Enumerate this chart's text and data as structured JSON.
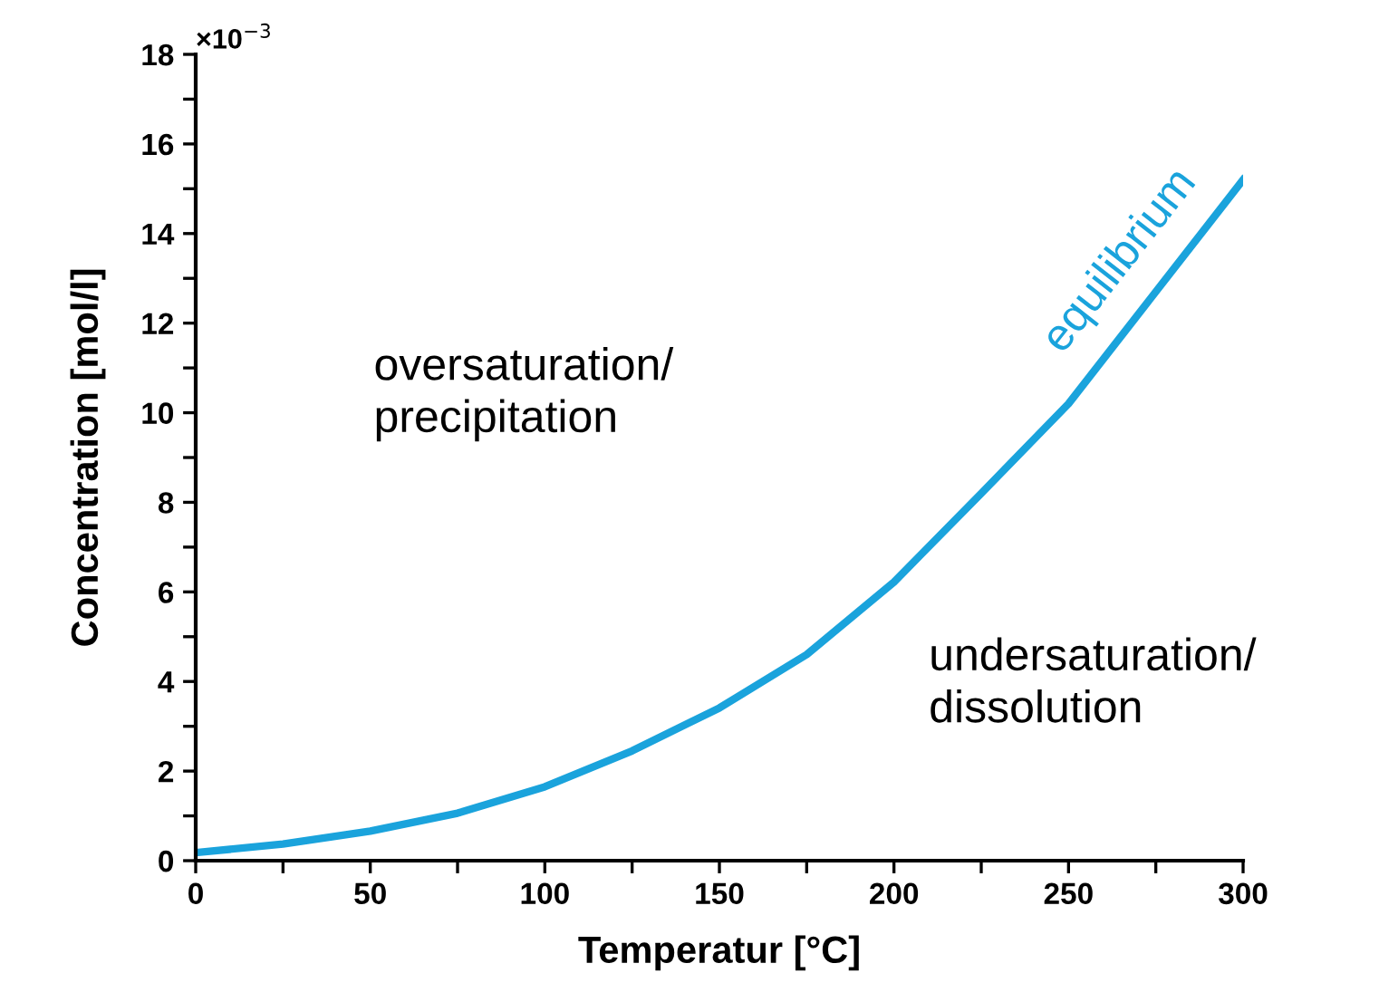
{
  "chart_data": {
    "type": "line",
    "xlabel": "Temperatur [°C]",
    "ylabel": "Concentration [mol/l]",
    "x": [
      0,
      25,
      50,
      75,
      100,
      125,
      150,
      175,
      200,
      225,
      250,
      275,
      300
    ],
    "series": [
      {
        "name": "equilibrium",
        "color": "#1aa3dc",
        "values": [
          0.18,
          0.37,
          0.66,
          1.06,
          1.65,
          2.45,
          3.41,
          4.6,
          6.22,
          8.2,
          10.2,
          12.7,
          15.2
        ]
      }
    ],
    "xlim": [
      0,
      300
    ],
    "ylim": [
      0,
      18
    ],
    "xticks": [
      0,
      {
        "value": 25,
        "label": null
      },
      50,
      {
        "value": 75,
        "label": null
      },
      100,
      {
        "value": 125,
        "label": null
      },
      150,
      {
        "value": 175,
        "label": null
      },
      200,
      {
        "value": 225,
        "label": null
      },
      250,
      {
        "value": 275,
        "label": null
      },
      300
    ],
    "yticks": [
      0,
      {
        "value": 1,
        "label": null
      },
      2,
      {
        "value": 3,
        "label": null
      },
      4,
      {
        "value": 5,
        "label": null
      },
      6,
      {
        "value": 7,
        "label": null
      },
      8,
      {
        "value": 9,
        "label": null
      },
      10,
      {
        "value": 11,
        "label": null
      },
      12,
      {
        "value": 13,
        "label": null
      },
      14,
      {
        "value": 15,
        "label": null
      },
      16,
      {
        "value": 17,
        "label": null
      },
      18
    ],
    "annotations": [
      "×10$^{−3}$",
      "oversaturation/\nprecipitation",
      "undersaturation/\ndissolution"
    ],
    "grid": false,
    "legend": false,
    "marker": "none",
    "line_style": "solid"
  }
}
